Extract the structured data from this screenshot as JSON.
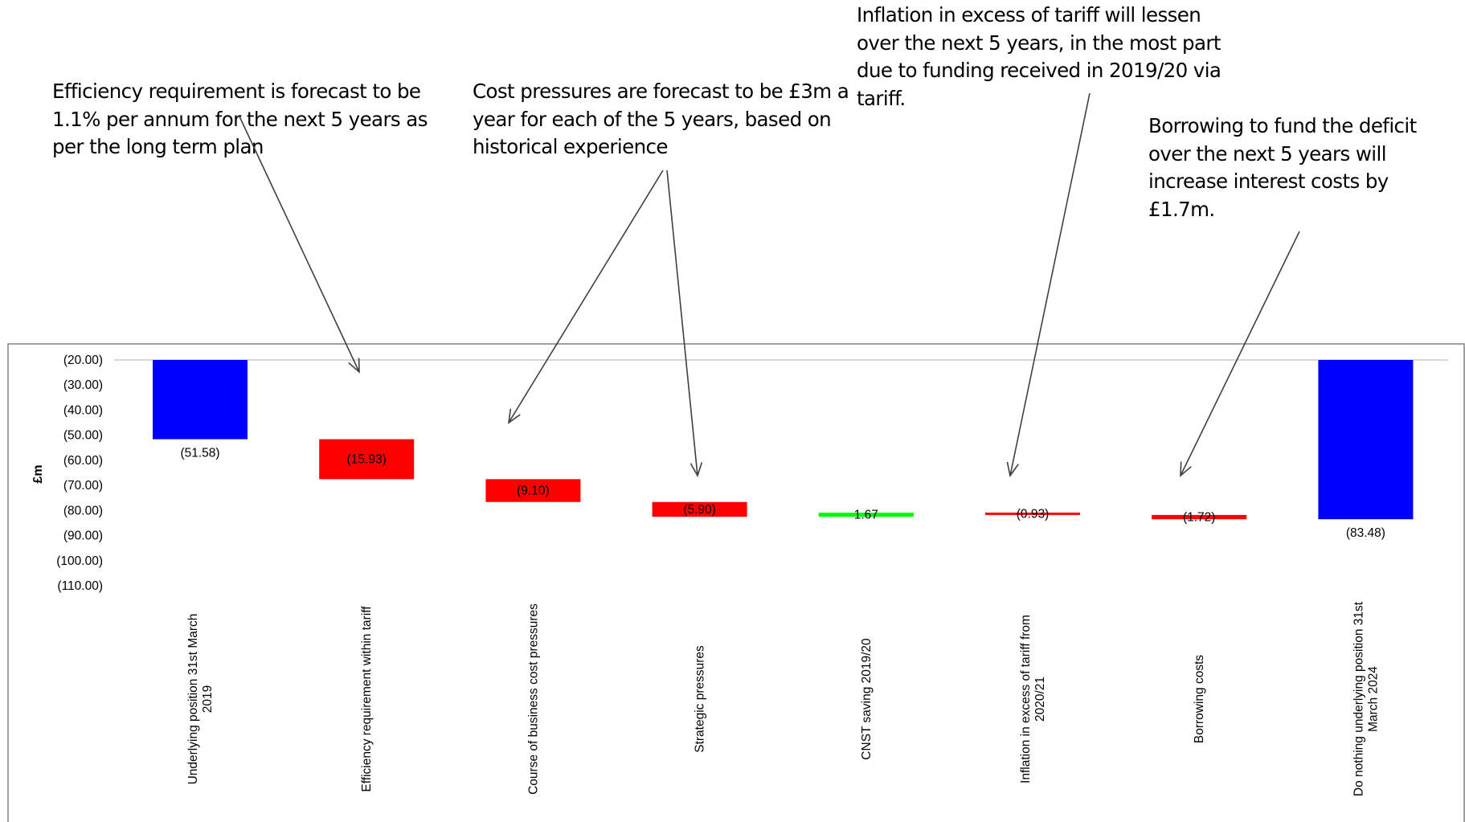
{
  "annotations": {
    "efficiency": "Efficiency requirement is forecast to be\n1.1% per annum for the next 5 years as\nper the long term plan",
    "cost_pressures": "Cost pressures are forecast to be £3m a\nyear for each of the 5 years, based on\nhistorical experience",
    "inflation": "Inflation in excess of tariff will lessen\nover the next 5 years, in the most part\ndue to funding received in 2019/20 via\ntariff.",
    "borrowing": "Borrowing to fund the deficit\nover the next 5 years will\nincrease interest costs by\n£1.7m."
  },
  "chart_data": {
    "type": "waterfall",
    "ylabel": "£m",
    "ylim": [
      -110,
      -20
    ],
    "yticks": [
      -20,
      -30,
      -40,
      -50,
      -60,
      -70,
      -80,
      -90,
      -100,
      -110
    ],
    "ytick_labels": [
      "(20.00)",
      "(30.00)",
      "(40.00)",
      "(50.00)",
      "(60.00)",
      "(70.00)",
      "(80.00)",
      "(90.00)",
      "(100.00)",
      "(110.00)"
    ],
    "categories": [
      [
        "Underlying position 31st March",
        "2019"
      ],
      [
        "Efficiency requirement within tariff"
      ],
      [
        "Course of business cost pressures"
      ],
      [
        "Strategic pressures"
      ],
      [
        "CNST saving 2019/20"
      ],
      [
        "Inflation in excess of tariff from",
        "2020/21"
      ],
      [
        "Borrowing costs"
      ],
      [
        "Do nothing underlying position 31st",
        "March 2024"
      ]
    ],
    "bars": [
      {
        "kind": "total",
        "start": 0,
        "end": -51.58,
        "value": -51.58,
        "label": "(51.58)",
        "color": "#0000ff"
      },
      {
        "kind": "decrease",
        "start": -51.58,
        "end": -67.51,
        "value": -15.93,
        "label": "(15.93)",
        "color": "#ff0000"
      },
      {
        "kind": "decrease",
        "start": -67.51,
        "end": -76.61,
        "value": -9.1,
        "label": "(9.10)",
        "color": "#ff0000"
      },
      {
        "kind": "decrease",
        "start": -76.61,
        "end": -82.51,
        "value": -5.9,
        "label": "(5.90)",
        "color": "#ff0000"
      },
      {
        "kind": "increase",
        "start": -82.51,
        "end": -80.84,
        "value": 1.67,
        "label": "1.67",
        "color": "#00ff00"
      },
      {
        "kind": "decrease",
        "start": -80.84,
        "end": -81.77,
        "value": -0.93,
        "label": "(0.93)",
        "color": "#ff0000"
      },
      {
        "kind": "decrease",
        "start": -81.77,
        "end": -83.49,
        "value": -1.72,
        "label": "(1.72)",
        "color": "#ff0000"
      },
      {
        "kind": "total",
        "start": 0,
        "end": -83.48,
        "value": -83.48,
        "label": "(83.48)",
        "color": "#0000ff"
      }
    ]
  }
}
